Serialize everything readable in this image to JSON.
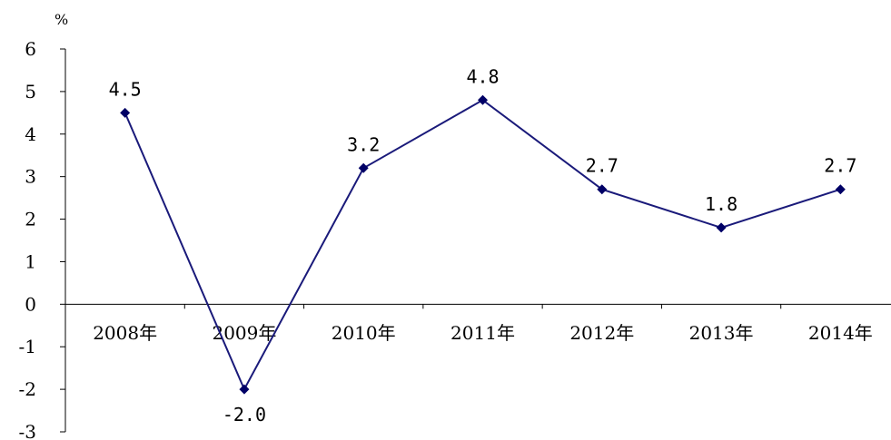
{
  "chart_data": {
    "type": "line",
    "categories": [
      "2008年",
      "2009年",
      "2010年",
      "2011年",
      "2012年",
      "2013年",
      "2014年"
    ],
    "values": [
      4.5,
      -2.0,
      3.2,
      4.8,
      2.7,
      1.8,
      2.7
    ],
    "value_labels": [
      "4.5",
      "-2.0",
      "3.2",
      "4.8",
      "2.7",
      "1.8",
      "2.7"
    ],
    "y_unit": "%",
    "ylim": [
      -3,
      6
    ],
    "yticks": [
      6,
      5,
      4,
      3,
      2,
      1,
      0,
      -1,
      -2,
      -3
    ],
    "grid": false,
    "line_color": "#1a1a7a",
    "marker_color": "#000066",
    "marker": "diamond"
  }
}
